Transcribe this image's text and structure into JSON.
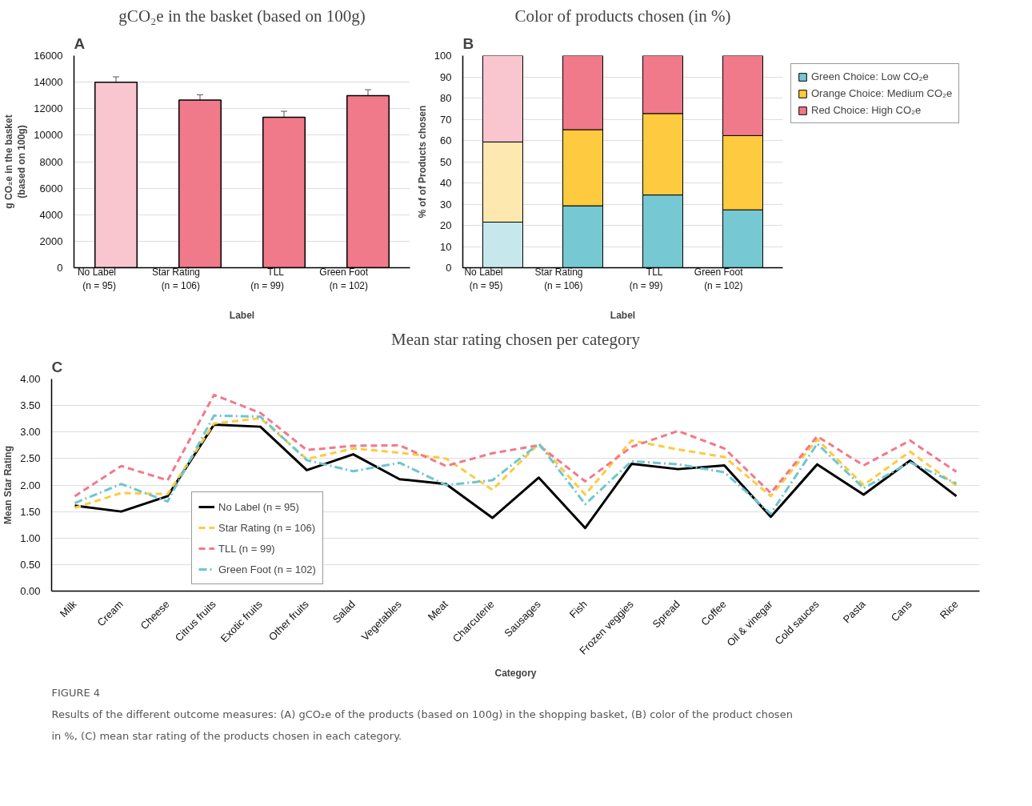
{
  "chart_data": [
    {
      "type": "bar",
      "title": "gCO₂e in the basket (based on 100g)",
      "xlabel": "Label",
      "ylabel": "g CO₂e in the basket\n(based on 100g)",
      "annotations": [
        "A"
      ],
      "categories": [
        "No Label\n(n = 95)",
        "Star Rating\n(n = 106)",
        "TLL\n(n = 99)",
        "Green Foot\n(n = 102)"
      ],
      "values": [
        14000,
        12650,
        11350,
        12980
      ],
      "colors": [
        "#f9c6d0",
        "#f07a8a",
        "#f07a8a",
        "#f07a8a"
      ],
      "errors": [
        400,
        400,
        450,
        450
      ],
      "ylim": [
        0,
        16000
      ],
      "yticks": [
        0,
        2000,
        4000,
        6000,
        8000,
        10000,
        12000,
        14000,
        16000
      ],
      "grid": "y"
    },
    {
      "type": "bar",
      "stacked": true,
      "title": "Color of products chosen (in %)",
      "xlabel": "Label",
      "ylabel": "% of of Products chosen",
      "annotations": [
        "B"
      ],
      "categories": [
        "No Label\n(n = 95)",
        "Star Rating\n(n = 106)",
        "TLL\n(n = 99)",
        "Green Foot\n(n = 102)"
      ],
      "series": [
        {
          "name": "Green Choice: Low CO₂e",
          "color": "#76c8d2",
          "colors": [
            "#c6e8ec",
            "#76c8d2",
            "#76c8d2",
            "#76c8d2"
          ],
          "values": [
            21.5,
            29.2,
            34.3,
            27.3
          ]
        },
        {
          "name": "Orange Choice: Medium CO₂e",
          "color": "#fdca40",
          "colors": [
            "#fde8b0",
            "#fdca40",
            "#fdca40",
            "#fdca40"
          ],
          "values": [
            37.8,
            35.9,
            38.4,
            35.0
          ]
        },
        {
          "name": "Red Choice: High CO₂e",
          "color": "#f07a8a",
          "colors": [
            "#f9c6d0",
            "#f07a8a",
            "#f07a8a",
            "#f07a8a"
          ],
          "values": [
            40.7,
            34.9,
            27.3,
            37.7
          ]
        }
      ],
      "ylim": [
        0,
        100
      ],
      "yticks": [
        0,
        10,
        20,
        30,
        40,
        50,
        60,
        70,
        80,
        90,
        100
      ],
      "grid": "y",
      "legend": "right"
    },
    {
      "type": "line",
      "title": "Mean star rating chosen per category",
      "xlabel": "Category",
      "ylabel": "Mean Star Rating",
      "annotations": [
        "C",
        "FIGURE 4",
        "Results of the different outcome measures: (A) gCO₂e of the products (based on 100g) in the shopping basket, (B) color of the product chosen",
        "in %, (C) mean star rating of the products chosen in each category."
      ],
      "categories": [
        "Milk",
        "Cream",
        "Cheese",
        "Citrus fruits",
        "Exotic fruits",
        "Other fruits",
        "Salad",
        "Vegetables",
        "Meat",
        "Charcuterie",
        "Sausages",
        "Fish",
        "Frozen veggies",
        "Spread",
        "Coffee",
        "Oil & vinegar",
        "Cold sauces",
        "Pasta",
        "Cans",
        "Rice"
      ],
      "series": [
        {
          "name": "No Label (n = 95)",
          "color": "#000000",
          "line_style": "solid",
          "values": [
            1.61,
            1.5,
            1.79,
            3.14,
            3.1,
            2.28,
            2.58,
            2.11,
            2.02,
            1.38,
            2.14,
            1.19,
            2.4,
            2.3,
            2.37,
            1.4,
            2.39,
            1.82,
            2.46,
            1.79
          ]
        },
        {
          "name": "Star Rating (n = 106)",
          "color": "#fdca40",
          "line_style": "dashed",
          "values": [
            1.57,
            1.85,
            1.83,
            3.16,
            3.26,
            2.49,
            2.69,
            2.61,
            2.5,
            1.91,
            2.78,
            1.82,
            2.84,
            2.67,
            2.53,
            1.79,
            2.86,
            2.0,
            2.63,
            1.99
          ]
        },
        {
          "name": "TLL (n = 99)",
          "color": "#f07a8a",
          "line_style": "dashed",
          "values": [
            1.79,
            2.36,
            2.09,
            3.7,
            3.36,
            2.66,
            2.74,
            2.75,
            2.36,
            2.6,
            2.75,
            2.07,
            2.72,
            3.02,
            2.69,
            1.85,
            2.92,
            2.37,
            2.84,
            2.25
          ]
        },
        {
          "name": "Green Foot (n = 102)",
          "color": "#6ec6d0",
          "line_style": "dashdot",
          "values": [
            1.66,
            2.02,
            1.69,
            3.31,
            3.29,
            2.47,
            2.26,
            2.42,
            2.0,
            2.09,
            2.78,
            1.64,
            2.45,
            2.39,
            2.24,
            1.46,
            2.78,
            1.94,
            2.43,
            2.03
          ]
        }
      ],
      "ylim": [
        0,
        4
      ],
      "yticks": [
        {
          "value": 0,
          "label": "0.00"
        },
        {
          "value": 0.5,
          "label": "0.50"
        },
        {
          "value": 1,
          "label": "1.00"
        },
        {
          "value": 1.5,
          "label": "1.50"
        },
        {
          "value": 2,
          "label": "2.00"
        },
        {
          "value": 2.5,
          "label": "2.50"
        },
        {
          "value": 3,
          "label": "3.00"
        },
        {
          "value": 3.5,
          "label": "3.50"
        },
        {
          "value": 4,
          "label": "4.00"
        }
      ],
      "grid": "y",
      "legend": "bottom left"
    }
  ]
}
